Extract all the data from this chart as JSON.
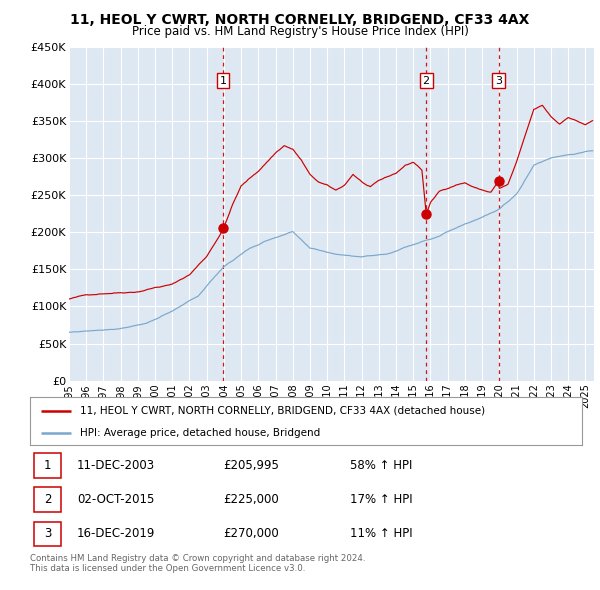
{
  "title": "11, HEOL Y CWRT, NORTH CORNELLY, BRIDGEND, CF33 4AX",
  "subtitle": "Price paid vs. HM Land Registry's House Price Index (HPI)",
  "xmin": 1995.0,
  "xmax": 2025.5,
  "ymin": 0,
  "ymax": 450000,
  "yticks": [
    0,
    50000,
    100000,
    150000,
    200000,
    250000,
    300000,
    350000,
    400000,
    450000
  ],
  "ytick_labels": [
    "£0",
    "£50K",
    "£100K",
    "£150K",
    "£200K",
    "£250K",
    "£300K",
    "£350K",
    "£400K",
    "£450K"
  ],
  "xticks": [
    1995,
    1996,
    1997,
    1998,
    1999,
    2000,
    2001,
    2002,
    2003,
    2004,
    2005,
    2006,
    2007,
    2008,
    2009,
    2010,
    2011,
    2012,
    2013,
    2014,
    2015,
    2016,
    2017,
    2018,
    2019,
    2020,
    2021,
    2022,
    2023,
    2024,
    2025
  ],
  "sale_color": "#cc0000",
  "hpi_color": "#7ba7cc",
  "plot_bg_color": "#dde8f3",
  "grid_color": "#ffffff",
  "vline_color": "#cc0000",
  "sale_dates": [
    2003.94,
    2015.75,
    2019.96
  ],
  "sale_prices": [
    205995,
    225000,
    270000
  ],
  "sale_labels": [
    "1",
    "2",
    "3"
  ],
  "legend_sale_label": "11, HEOL Y CWRT, NORTH CORNELLY, BRIDGEND, CF33 4AX (detached house)",
  "legend_hpi_label": "HPI: Average price, detached house, Bridgend",
  "table_rows": [
    {
      "num": "1",
      "date": "11-DEC-2003",
      "price": "£205,995",
      "change": "58% ↑ HPI"
    },
    {
      "num": "2",
      "date": "02-OCT-2015",
      "price": "£225,000",
      "change": "17% ↑ HPI"
    },
    {
      "num": "3",
      "date": "16-DEC-2019",
      "price": "£270,000",
      "change": "11% ↑ HPI"
    }
  ],
  "footer_line1": "Contains HM Land Registry data © Crown copyright and database right 2024.",
  "footer_line2": "This data is licensed under the Open Government Licence v3.0."
}
